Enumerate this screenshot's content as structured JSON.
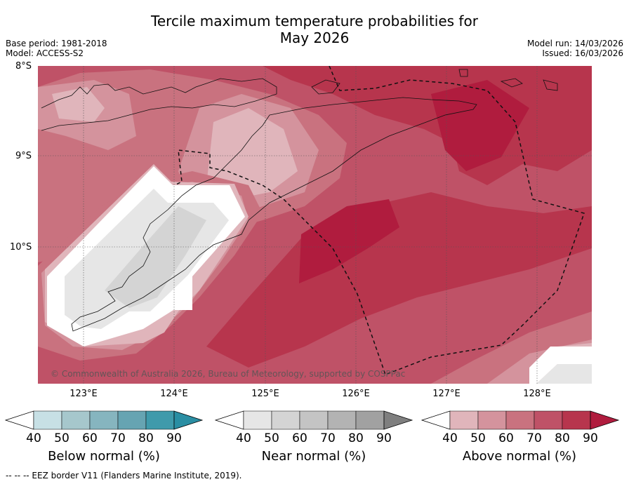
{
  "title_line1": "Tercile maximum temperature probabilities for",
  "title_line2": "May 2026",
  "base_period": "Base period: 1981-2018",
  "model": "Model: ACCESS-S2",
  "model_run": "Model run: 14/03/2026",
  "issued": "Issued: 16/03/2026",
  "lat_labels": [
    "8°S",
    "9°S",
    "10°S"
  ],
  "lon_labels": [
    "123°E",
    "124°E",
    "125°E",
    "126°E",
    "127°E",
    "128°E"
  ],
  "copyright": "© Commonwealth of Australia 2026, Bureau of Meteorology, supported by COSPPac",
  "colorbars": [
    {
      "label": "Below normal (%)",
      "ticks": [
        "40",
        "50",
        "60",
        "70",
        "80",
        "90"
      ],
      "colors": [
        "#c7e0e5",
        "#a6c7cc",
        "#86b5bf",
        "#66a4b2",
        "#3f9aab",
        "#2a8ea3"
      ]
    },
    {
      "label": "Near normal (%)",
      "ticks": [
        "40",
        "50",
        "60",
        "70",
        "80",
        "90"
      ],
      "colors": [
        "#e6e6e6",
        "#d4d4d4",
        "#c4c4c4",
        "#b3b3b3",
        "#a1a1a1",
        "#7f7f7f"
      ]
    },
    {
      "label": "Above normal (%)",
      "ticks": [
        "40",
        "50",
        "60",
        "70",
        "80",
        "90"
      ],
      "colors": [
        "#e0b5bb",
        "#d4939d",
        "#c9727f",
        "#bf5267",
        "#b7354d",
        "#b01c3e"
      ]
    }
  ],
  "footer": "--  --  -- EEZ border V11 (Flanders Marine Institute, 2019)."
}
